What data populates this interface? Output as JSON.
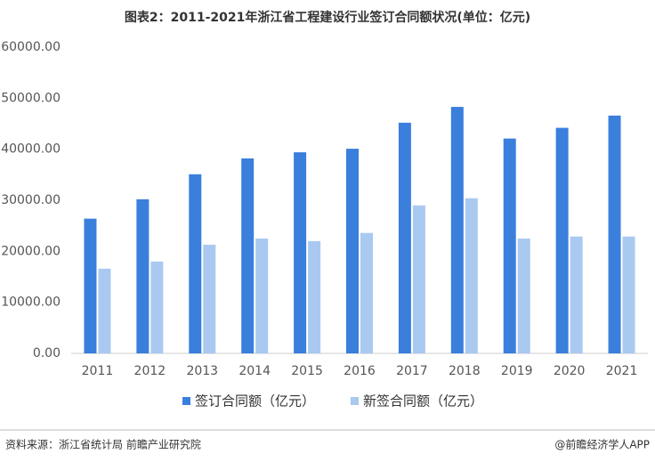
{
  "chart_data": {
    "type": "bar",
    "title": "图表2：2011-2021年浙江省工程建设行业签订合同额状况(单位：亿元)",
    "categories": [
      "2011",
      "2012",
      "2013",
      "2014",
      "2015",
      "2016",
      "2017",
      "2018",
      "2019",
      "2020",
      "2021"
    ],
    "series": [
      {
        "name": "签订合同额（亿元）",
        "color": "#3a7fdc",
        "values": [
          26400,
          30200,
          35100,
          38200,
          39400,
          40100,
          45200,
          48300,
          42100,
          44200,
          46600
        ]
      },
      {
        "name": "新签合同额（亿元）",
        "color": "#a9c9f1",
        "values": [
          16600,
          18000,
          21300,
          22500,
          22000,
          23600,
          29000,
          30400,
          22500,
          22900,
          22900
        ]
      }
    ],
    "ylim": [
      0,
      60000
    ],
    "yticks": [
      {
        "value": 0,
        "label": "0.00"
      },
      {
        "value": 10000,
        "label": "10000.00"
      },
      {
        "value": 20000,
        "label": "20000.00"
      },
      {
        "value": 30000,
        "label": "30000.00"
      },
      {
        "value": 40000,
        "label": "40000.00"
      },
      {
        "value": 50000,
        "label": "50000.00"
      },
      {
        "value": 60000,
        "label": "60000.00"
      }
    ],
    "grid": false,
    "legend": "bottom",
    "source": "资料来源：浙江省统计局 前瞻产业研究院",
    "credit": "@前瞻经济学人APP"
  }
}
